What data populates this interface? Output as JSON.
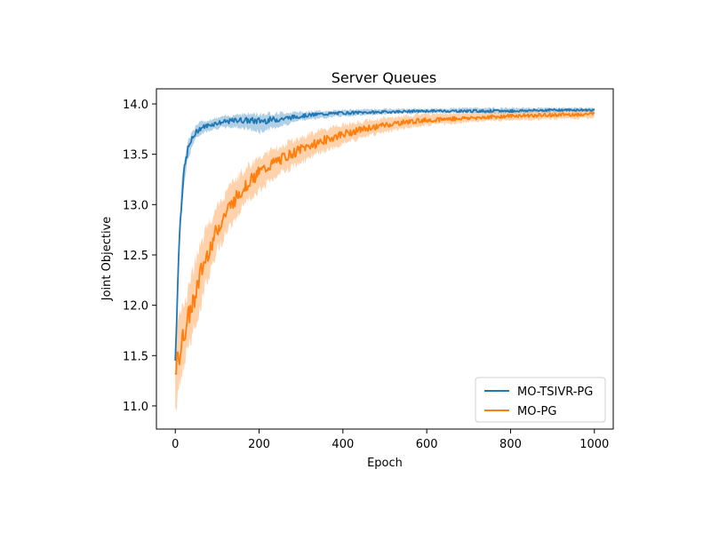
{
  "chart_data": {
    "type": "line",
    "title": "Server Queues",
    "xlabel": "Epoch",
    "ylabel": "Joint Objective",
    "xlim": [
      -45,
      1045
    ],
    "ylim": [
      10.77,
      14.15
    ],
    "xticks": [
      0,
      200,
      400,
      600,
      800,
      1000
    ],
    "yticks": [
      11.0,
      11.5,
      12.0,
      12.5,
      13.0,
      13.5,
      14.0
    ],
    "xtick_labels": [
      "0",
      "200",
      "400",
      "600",
      "800",
      "1000"
    ],
    "ytick_labels": [
      "11.0",
      "11.5",
      "12.0",
      "12.5",
      "13.0",
      "13.5",
      "14.0"
    ],
    "grid": false,
    "legend_position": "lower-right",
    "series": [
      {
        "name": "MO-TSIVR-PG",
        "color": "#1f77b4",
        "x": [
          0,
          5,
          10,
          15,
          20,
          30,
          40,
          50,
          60,
          80,
          100,
          150,
          200,
          250,
          300,
          350,
          400,
          500,
          600,
          700,
          800,
          900,
          1000
        ],
        "y": [
          11.45,
          12.1,
          12.7,
          13.05,
          13.3,
          13.55,
          13.65,
          13.72,
          13.76,
          13.79,
          13.81,
          13.84,
          13.83,
          13.85,
          13.88,
          13.9,
          13.91,
          13.92,
          13.93,
          13.93,
          13.93,
          13.94,
          13.94
        ],
        "band_lower": [
          11.35,
          11.95,
          12.55,
          12.9,
          13.18,
          13.45,
          13.58,
          13.66,
          13.7,
          13.74,
          13.76,
          13.77,
          13.72,
          13.78,
          13.84,
          13.86,
          13.88,
          13.9,
          13.91,
          13.91,
          13.91,
          13.92,
          13.92
        ],
        "band_upper": [
          11.55,
          12.25,
          12.85,
          13.2,
          13.42,
          13.64,
          13.72,
          13.78,
          13.82,
          13.84,
          13.86,
          13.9,
          13.9,
          13.91,
          13.92,
          13.93,
          13.94,
          13.95,
          13.95,
          13.96,
          13.96,
          13.96,
          13.96
        ]
      },
      {
        "name": "MO-PG",
        "color": "#ff7f0e",
        "x": [
          0,
          10,
          20,
          30,
          40,
          50,
          60,
          80,
          100,
          125,
          150,
          175,
          200,
          250,
          300,
          350,
          400,
          450,
          500,
          550,
          600,
          700,
          800,
          900,
          1000
        ],
        "y": [
          11.35,
          11.5,
          11.7,
          11.85,
          12.0,
          12.15,
          12.3,
          12.55,
          12.75,
          12.95,
          13.1,
          13.22,
          13.32,
          13.45,
          13.55,
          13.63,
          13.7,
          13.75,
          13.79,
          13.82,
          13.84,
          13.86,
          13.88,
          13.89,
          13.9
        ],
        "band_lower": [
          10.9,
          11.2,
          11.4,
          11.55,
          11.7,
          11.85,
          12.0,
          12.3,
          12.55,
          12.75,
          12.92,
          13.05,
          13.15,
          13.3,
          13.42,
          13.52,
          13.6,
          13.67,
          13.72,
          13.76,
          13.79,
          13.82,
          13.84,
          13.85,
          13.86
        ],
        "band_upper": [
          11.7,
          11.85,
          12.0,
          12.15,
          12.3,
          12.45,
          12.6,
          12.8,
          12.98,
          13.15,
          13.28,
          13.38,
          13.47,
          13.58,
          13.67,
          13.74,
          13.79,
          13.83,
          13.86,
          13.88,
          13.9,
          13.91,
          13.92,
          13.93,
          13.94
        ]
      }
    ]
  }
}
